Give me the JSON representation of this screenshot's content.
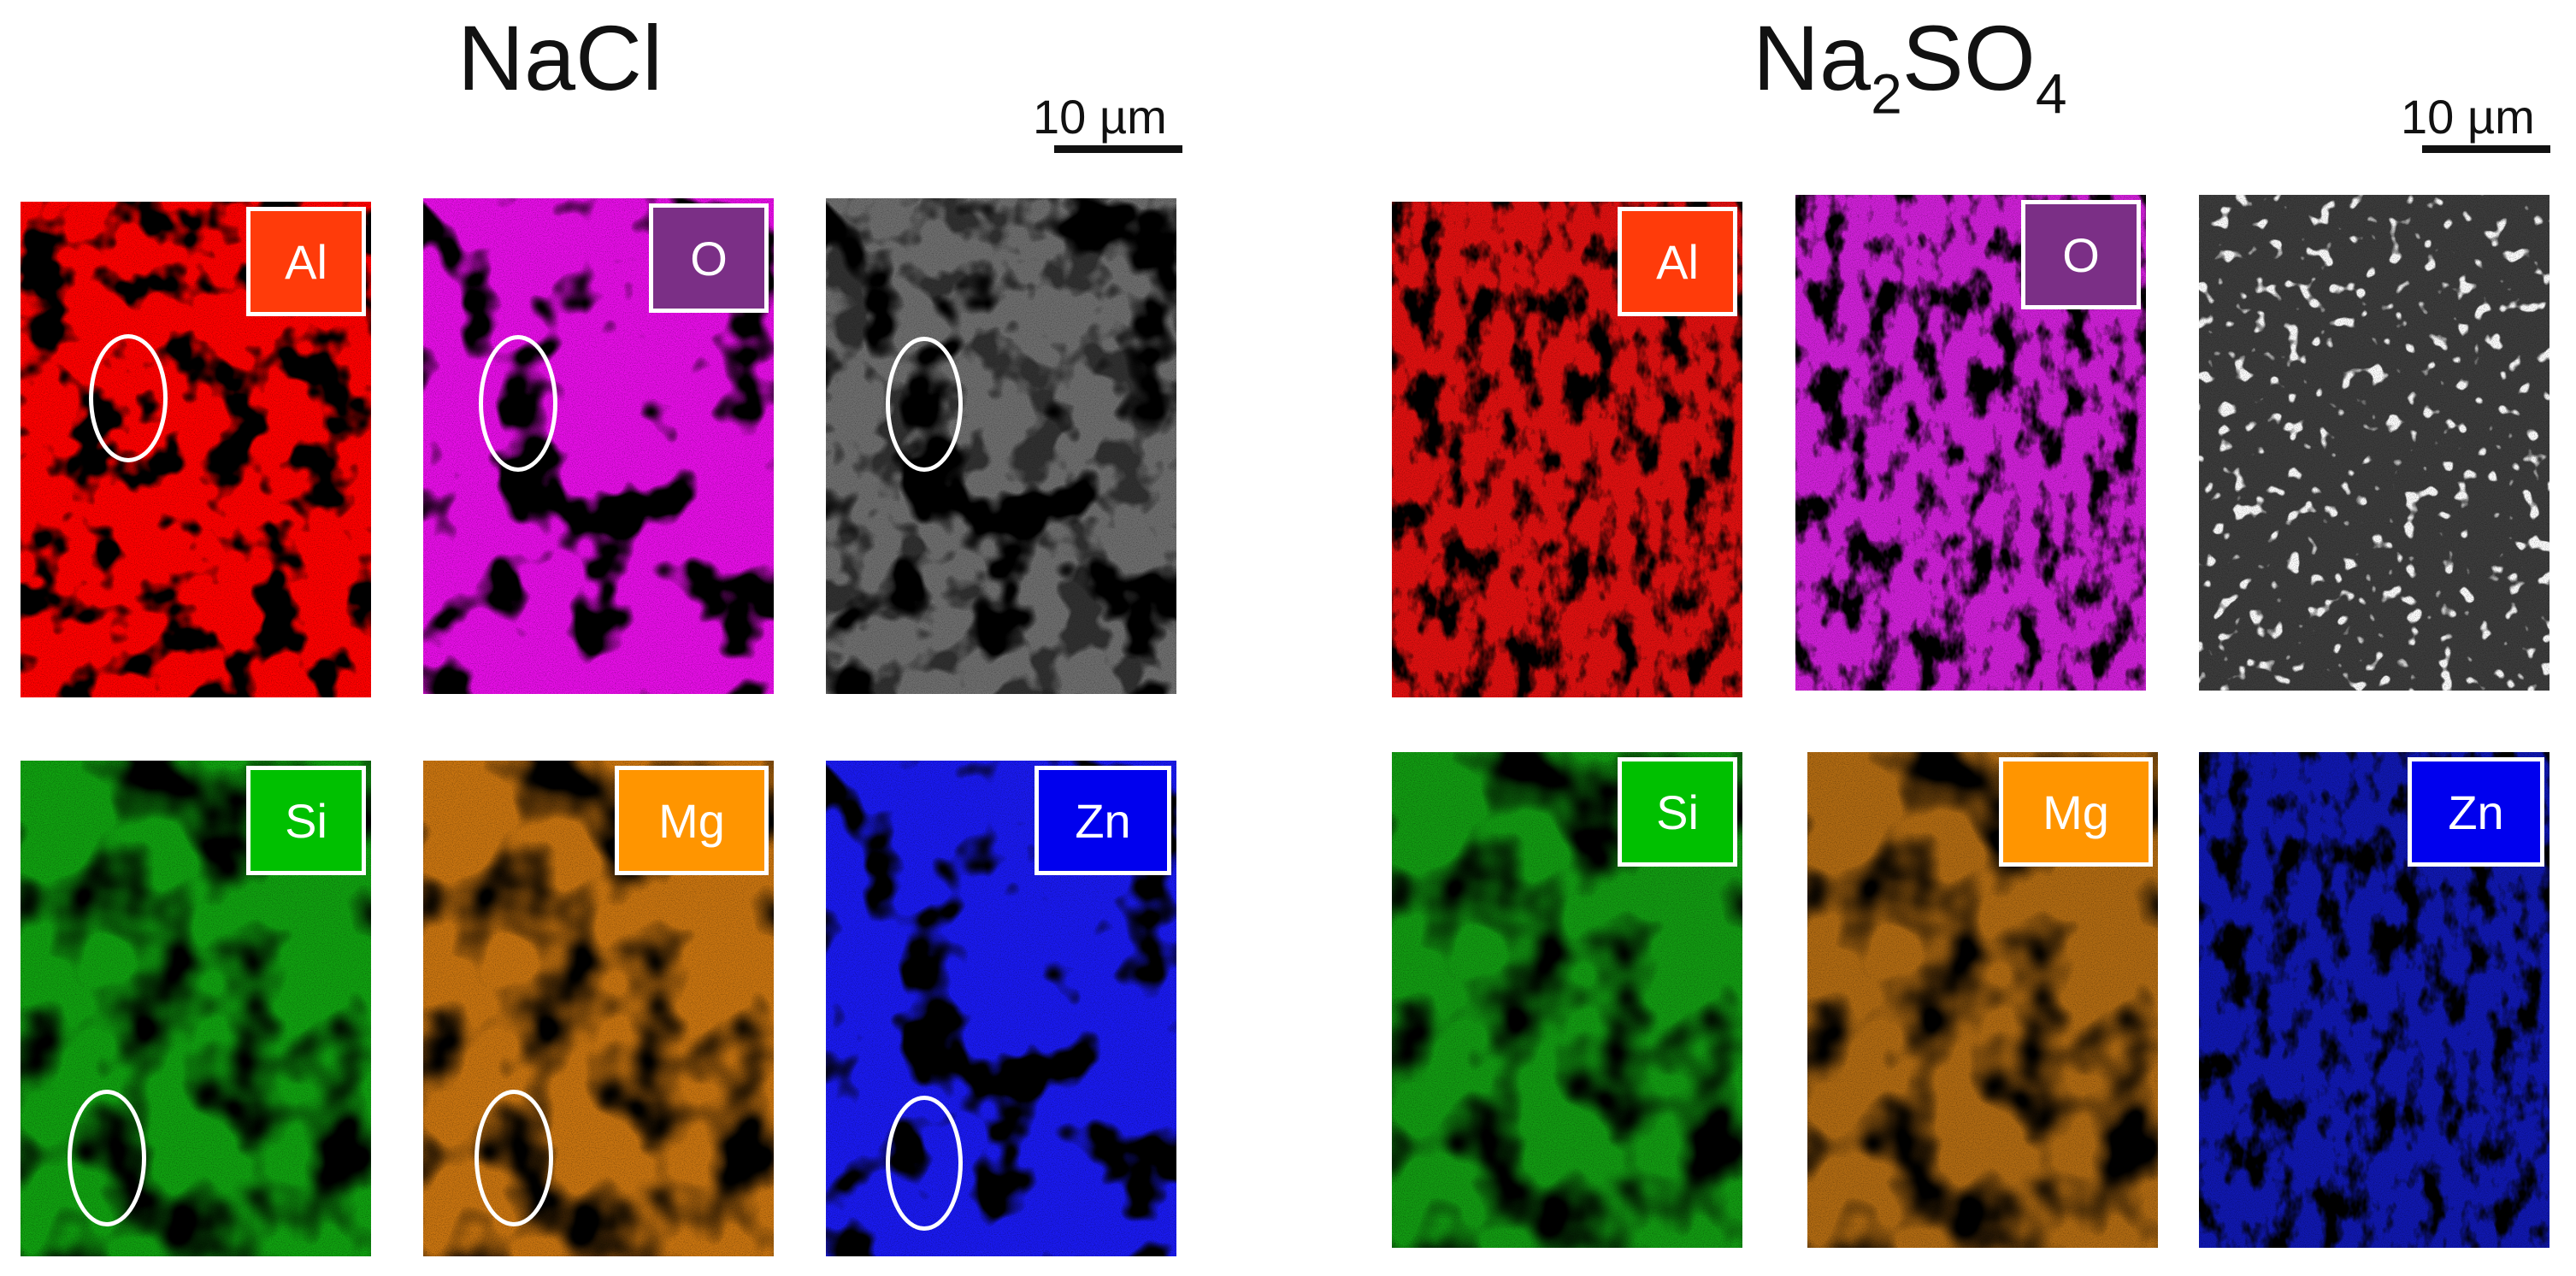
{
  "groups": [
    {
      "title": "NaCl",
      "title_sub": "",
      "title_end": "",
      "scale_label": "10 µm",
      "panels": [
        {
          "label": "Al",
          "tag_color": "#ff3b0a",
          "map_color": "#ff0000",
          "texture": "al-nacl"
        },
        {
          "label": "O",
          "tag_color": "#7b2f86",
          "map_color": "#e60ee6",
          "texture": "o-nacl"
        },
        {
          "label": "",
          "tag_color": "",
          "map_color": "#6e6e6e",
          "texture": "sem-nacl"
        },
        {
          "label": "Si",
          "tag_color": "#00c000",
          "map_color": "#10a010",
          "texture": "si"
        },
        {
          "label": "Mg",
          "tag_color": "#ff9500",
          "map_color": "#c87410",
          "texture": "mg"
        },
        {
          "label": "Zn",
          "tag_color": "#0000ee",
          "map_color": "#1a1af0",
          "texture": "zn-nacl"
        }
      ]
    },
    {
      "title": "Na",
      "title_sub": "2",
      "title_end": "SO",
      "title_sub2": "4",
      "scale_label": "10 µm",
      "panels": [
        {
          "label": "Al",
          "tag_color": "#ff3b0a",
          "map_color": "#e01010",
          "texture": "al-na2so4"
        },
        {
          "label": "O",
          "tag_color": "#7b2f86",
          "map_color": "#d020d8",
          "texture": "o-na2so4"
        },
        {
          "label": "",
          "tag_color": "",
          "map_color": "#3c3c3c",
          "texture": "sem-na2so4"
        },
        {
          "label": "Si",
          "tag_color": "#00c000",
          "map_color": "#129a12",
          "texture": "si"
        },
        {
          "label": "Mg",
          "tag_color": "#ff9500",
          "map_color": "#b06a12",
          "texture": "mg"
        },
        {
          "label": "Zn",
          "tag_color": "#0000ee",
          "map_color": "#1018b0",
          "texture": "zn-na2so4"
        }
      ]
    }
  ]
}
